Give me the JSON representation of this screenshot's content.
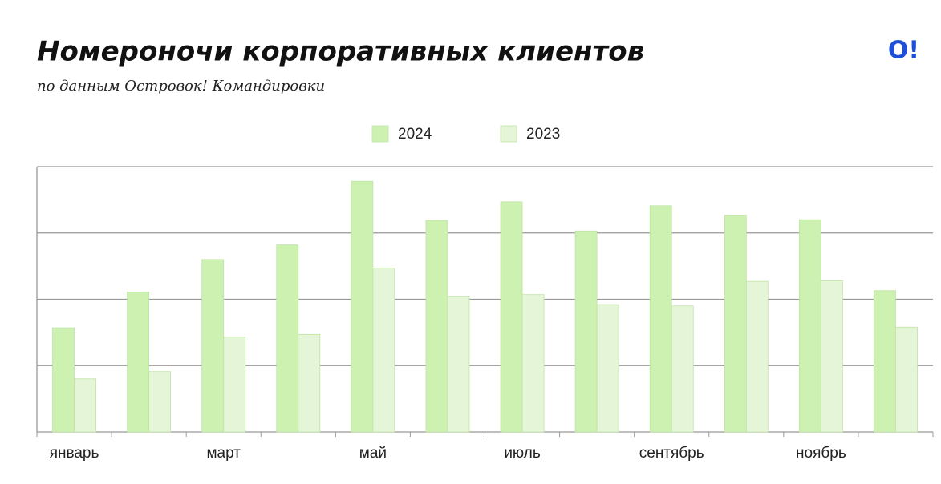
{
  "logo": "O!",
  "chart_data": {
    "type": "bar",
    "title": "Номероночи корпоративных клиентов",
    "subtitle": "по данным Островок! Командировки",
    "categories": [
      "январь",
      null,
      "март",
      null,
      "май",
      null,
      "июль",
      null,
      "сентябрь",
      null,
      "ноябрь",
      null
    ],
    "series": [
      {
        "name": "2024",
        "color": "#cdf1b0",
        "values": [
          1.57,
          2.11,
          2.6,
          2.82,
          3.78,
          3.19,
          3.47,
          3.03,
          3.41,
          3.27,
          3.2,
          2.13
        ]
      },
      {
        "name": "2023",
        "color": "#e5f6d8",
        "values": [
          0.8,
          0.91,
          1.43,
          1.47,
          2.47,
          2.04,
          2.07,
          1.92,
          1.9,
          2.27,
          2.28,
          1.58
        ]
      }
    ],
    "ylim": [
      0,
      4
    ],
    "yticks": [
      0,
      1,
      2,
      3,
      4
    ],
    "grid": true,
    "legend": "top"
  }
}
